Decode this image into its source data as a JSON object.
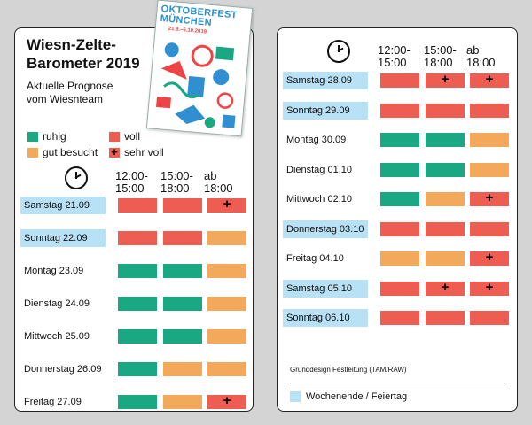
{
  "left_card": {
    "title_line1": "Wiesn-Zelte-",
    "title_line2": "Barometer 2019",
    "subtitle_line1": "Aktuelle Prognose",
    "subtitle_line2": "vom Wiesnteam"
  },
  "legend": {
    "ruhig": "ruhig",
    "voll": "voll",
    "gut_besucht": "gut besucht",
    "sehr_voll": "sehr voll"
  },
  "columns": {
    "c1_line1": "12:00-",
    "c1_line2": "15:00",
    "c2_line1": "15:00-",
    "c2_line2": "18:00",
    "c3_line1": "ab",
    "c3_line2": "18:00"
  },
  "colors": {
    "ruhig": "#1aa882",
    "gut_besucht": "#f3a95c",
    "voll": "#ee5d52",
    "weekend": "#b8e1f5"
  },
  "poster": {
    "title_line1": "OKTOBERFEST",
    "title_line2": "MÜNCHEN",
    "dates": "21.9.–6.10.2019"
  },
  "days_left": [
    {
      "label": "Samstag 21.09",
      "weekend": true,
      "slots": [
        "voll",
        "voll",
        "sehr_voll"
      ]
    },
    {
      "label": "Sonntag 22.09",
      "weekend": true,
      "slots": [
        "voll",
        "voll",
        "gut_besucht"
      ]
    },
    {
      "label": "Montag 23.09",
      "weekend": false,
      "slots": [
        "ruhig",
        "ruhig",
        "gut_besucht"
      ]
    },
    {
      "label": "Dienstag 24.09",
      "weekend": false,
      "slots": [
        "ruhig",
        "ruhig",
        "gut_besucht"
      ]
    },
    {
      "label": "Mittwoch 25.09",
      "weekend": false,
      "slots": [
        "ruhig",
        "ruhig",
        "gut_besucht"
      ]
    },
    {
      "label": "Donnerstag 26.09",
      "weekend": false,
      "slots": [
        "ruhig",
        "gut_besucht",
        "gut_besucht"
      ]
    },
    {
      "label": "Freitag 27.09",
      "weekend": false,
      "slots": [
        "ruhig",
        "gut_besucht",
        "sehr_voll"
      ]
    }
  ],
  "days_right": [
    {
      "label": "Samstag 28.09",
      "weekend": true,
      "slots": [
        "voll",
        "sehr_voll",
        "sehr_voll"
      ]
    },
    {
      "label": "Sonntag 29.09",
      "weekend": true,
      "slots": [
        "voll",
        "voll",
        "voll"
      ]
    },
    {
      "label": "Montag 30.09",
      "weekend": false,
      "slots": [
        "ruhig",
        "ruhig",
        "gut_besucht"
      ]
    },
    {
      "label": "Dienstag 01.10",
      "weekend": false,
      "slots": [
        "ruhig",
        "ruhig",
        "gut_besucht"
      ]
    },
    {
      "label": "Mittwoch 02.10",
      "weekend": false,
      "slots": [
        "ruhig",
        "gut_besucht",
        "sehr_voll"
      ]
    },
    {
      "label": "Donnerstag 03.10",
      "weekend": true,
      "slots": [
        "voll",
        "voll",
        "voll"
      ]
    },
    {
      "label": "Freitag 04.10",
      "weekend": false,
      "slots": [
        "gut_besucht",
        "gut_besucht",
        "sehr_voll"
      ]
    },
    {
      "label": "Samstag 05.10",
      "weekend": true,
      "slots": [
        "voll",
        "sehr_voll",
        "sehr_voll"
      ]
    },
    {
      "label": "Sonntag 06.10",
      "weekend": true,
      "slots": [
        "voll",
        "voll",
        "voll"
      ]
    }
  ],
  "footer": {
    "credit": "Grunddesign Festleitung (TAM/RAW)",
    "weekend_legend": "Wochenende / Feiertag"
  }
}
